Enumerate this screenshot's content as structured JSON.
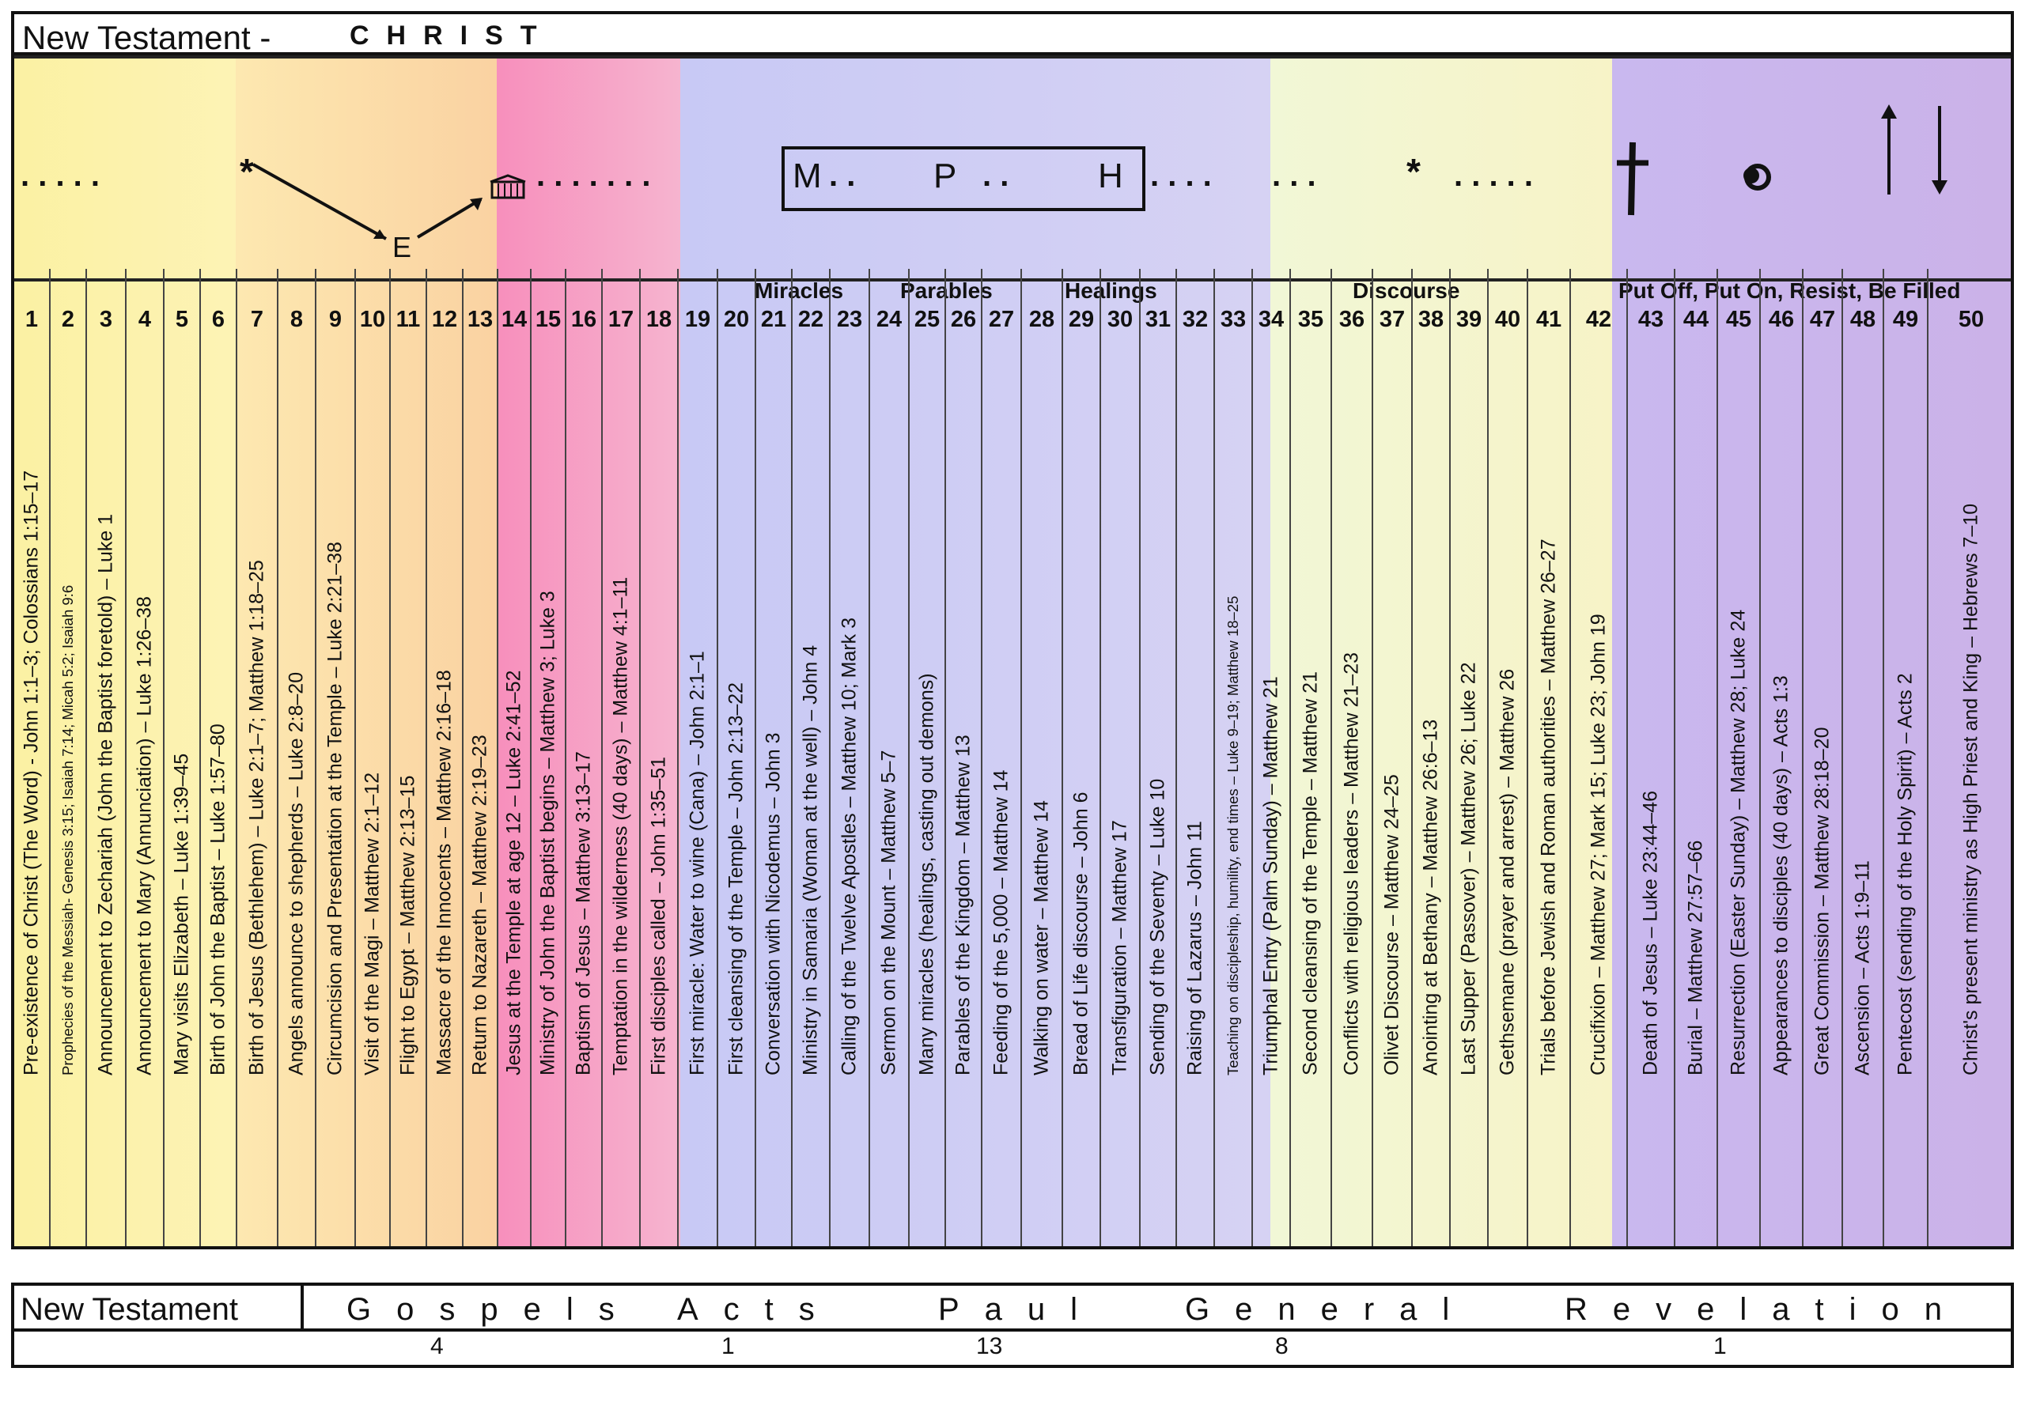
{
  "title": {
    "main": "New Testament  -",
    "sub": "CHRIST"
  },
  "symbols": {
    "dots_left": ". . . . .",
    "dots_mid": ". . . . . . .",
    "mph": [
      "M",
      "P",
      "H"
    ],
    "dots_after": ". . . .",
    "dots_right": ". . . . .",
    "star": "*",
    "e": "E",
    "cross": "cross-icon",
    "tomb": "empty-tomb-icon",
    "up": "ascension-arrow-icon",
    "down": "return-arrow-icon"
  },
  "group_labels": {
    "miracles": "Miracles",
    "parables": "Parables",
    "healings": "Healings",
    "discourse": "Discourse",
    "put_off": "Put Off, Put On, Resist, Be Filled"
  },
  "columns": [
    {
      "n": "1",
      "t": "Pre-existence of Christ (The Word) - John 1:1–3; Colossians 1:15–17"
    },
    {
      "n": "2",
      "t": "Prophecies of the Messiah- Genesis 3:15; Isaiah 7:14; Micah 5:2; Isaiah 9:6"
    },
    {
      "n": "3",
      "t": "Announcement to Zechariah (John the Baptist foretold) – Luke 1"
    },
    {
      "n": "4",
      "t": "Announcement to Mary (Annunciation) – Luke 1:26–38"
    },
    {
      "n": "5",
      "t": "Mary visits Elizabeth – Luke 1:39–45"
    },
    {
      "n": "6",
      "t": "Birth of John the Baptist – Luke 1:57–80"
    },
    {
      "n": "7",
      "t": "Birth of Jesus (Bethlehem) – Luke 2:1–7; Matthew 1:18–25"
    },
    {
      "n": "8",
      "t": "Angels announce to shepherds – Luke 2:8–20"
    },
    {
      "n": "9",
      "t": "Circumcision and Presentation at the Temple – Luke 2:21–38"
    },
    {
      "n": "10",
      "t": "Visit of the Magi – Matthew 2:1–12"
    },
    {
      "n": "11",
      "t": "Flight to Egypt – Matthew 2:13–15"
    },
    {
      "n": "12",
      "t": "Massacre of the Innocents – Matthew 2:16–18"
    },
    {
      "n": "13",
      "t": "Return to Nazareth – Matthew 2:19–23"
    },
    {
      "n": "14",
      "t": "Jesus at the Temple at age 12 – Luke 2:41–52"
    },
    {
      "n": "15",
      "t": "Ministry of John the Baptist begins – Matthew 3; Luke 3"
    },
    {
      "n": "16",
      "t": "Baptism of Jesus – Matthew 3:13–17"
    },
    {
      "n": "17",
      "t": "Temptation in the wilderness (40 days) – Matthew 4:1–11"
    },
    {
      "n": "18",
      "t": "First disciples called – John 1:35–51"
    },
    {
      "n": "19",
      "t": "First miracle: Water to wine (Cana) – John 2:1–1"
    },
    {
      "n": "20",
      "t": "First cleansing of the Temple – John 2:13–22"
    },
    {
      "n": "21",
      "t": "Conversation with Nicodemus – John 3"
    },
    {
      "n": "22",
      "t": "Ministry in Samaria (Woman at the well) – John 4"
    },
    {
      "n": "23",
      "t": "Calling of the Twelve Apostles – Matthew 10; Mark 3"
    },
    {
      "n": "24",
      "t": "Sermon on the Mount – Matthew 5–7"
    },
    {
      "n": "25",
      "t": "Many miracles (healings, casting out demons)"
    },
    {
      "n": "26",
      "t": "Parables of the Kingdom – Matthew 13"
    },
    {
      "n": "27",
      "t": "Feeding of the 5,000 – Matthew 14"
    },
    {
      "n": "28",
      "t": "Walking on water – Matthew 14"
    },
    {
      "n": "29",
      "t": "Bread of Life discourse – John 6"
    },
    {
      "n": "30",
      "t": "Transfiguration – Matthew 17"
    },
    {
      "n": "31",
      "t": "Sending of the Seventy – Luke 10"
    },
    {
      "n": "32",
      "t": "Raising of Lazarus – John 11"
    },
    {
      "n": "33",
      "t": "Teaching on discipleship, humility, end times – Luke 9–19; Matthew 18–25"
    },
    {
      "n": "34",
      "t": "Triumphal Entry (Palm Sunday) – Matthew 21"
    },
    {
      "n": "35",
      "t": "Second cleansing of the Temple – Matthew 21"
    },
    {
      "n": "36",
      "t": "Conflicts with religious leaders – Matthew 21–23"
    },
    {
      "n": "37",
      "t": "Olivet Discourse – Matthew 24–25"
    },
    {
      "n": "38",
      "t": "Anointing at Bethany – Matthew 26:6–13"
    },
    {
      "n": "39",
      "t": "Last Supper (Passover) – Matthew 26; Luke 22"
    },
    {
      "n": "40",
      "t": "Gethsemane (prayer and arrest) – Matthew 26"
    },
    {
      "n": "41",
      "t": "Trials before Jewish and Roman authorities – Matthew 26–27"
    },
    {
      "n": "42",
      "t": "Crucifixion – Matthew 27; Mark 15; Luke 23; John 19"
    },
    {
      "n": "43",
      "t": "Death of Jesus – Luke 23:44–46"
    },
    {
      "n": "44",
      "t": "Burial – Matthew 27:57–66"
    },
    {
      "n": "45",
      "t": "Resurrection (Easter Sunday) – Matthew 28; Luke 24"
    },
    {
      "n": "46",
      "t": "Appearances to disciples (40 days) – Acts 1:3"
    },
    {
      "n": "47",
      "t": "Great Commission – Matthew 28:18–20"
    },
    {
      "n": "48",
      "t": "Ascension – Acts 1:9–11"
    },
    {
      "n": "49",
      "t": "Pentecost (sending of the Holy Spirit) – Acts 2"
    },
    {
      "n": "50",
      "t": "Christ's present ministry as High Priest and King – Hebrews 7–10"
    }
  ],
  "footer": {
    "label": "New Testament",
    "sections": [
      "Gospels",
      "Acts",
      "Paul",
      "General",
      "Revelation"
    ],
    "counts": [
      "4",
      "1",
      "13",
      "8",
      "1"
    ]
  },
  "colors": {
    "yellow": "#fbf2a0",
    "orange": "#fbd9a6",
    "pink": "#f7a3c8",
    "blue": "#c9cbf4",
    "light": "#f4f7d2",
    "purple": "#cdb9ec"
  }
}
